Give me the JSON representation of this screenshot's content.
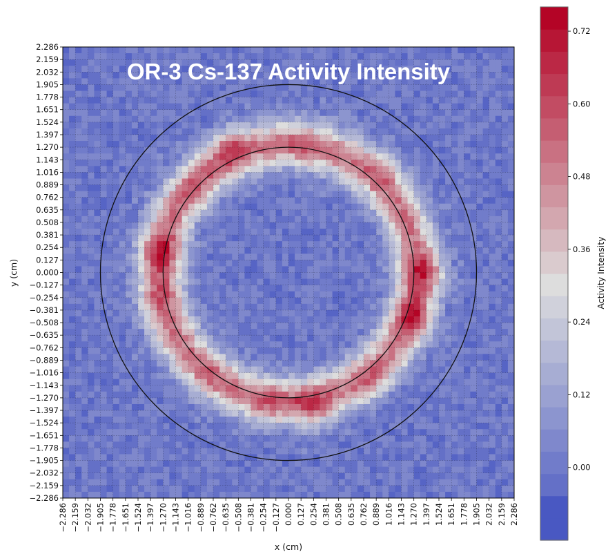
{
  "chart_data": {
    "type": "heatmap",
    "title": "OR-3 Cs-137 Activity Intensity",
    "xlabel": "x (cm)",
    "ylabel": "y (cm)",
    "colorbar_label": "Activity Intensity",
    "xlim": [
      -2.286,
      2.286
    ],
    "ylim": [
      -2.286,
      2.286
    ],
    "x_ticks": [
      "−2.286",
      "−2.159",
      "−2.032",
      "−1.905",
      "−1.778",
      "−1.651",
      "−1.524",
      "−1.397",
      "−1.270",
      "−1.143",
      "−1.016",
      "−0.889",
      "−0.762",
      "−0.635",
      "−0.508",
      "−0.381",
      "−0.254",
      "−0.127",
      "0.000",
      "0.127",
      "0.254",
      "0.381",
      "0.508",
      "0.635",
      "0.762",
      "0.889",
      "1.016",
      "1.143",
      "1.270",
      "1.397",
      "1.524",
      "1.651",
      "1.778",
      "1.905",
      "2.032",
      "2.159",
      "2.286"
    ],
    "y_ticks": [
      "2.286",
      "2.159",
      "2.032",
      "1.905",
      "1.778",
      "1.651",
      "1.524",
      "1.397",
      "1.270",
      "1.143",
      "1.016",
      "0.889",
      "0.762",
      "0.635",
      "0.508",
      "0.381",
      "0.254",
      "0.127",
      "0.000",
      "−0.127",
      "−0.254",
      "−0.381",
      "−0.508",
      "−0.635",
      "−0.762",
      "−0.889",
      "−1.016",
      "−1.143",
      "−1.270",
      "−1.397",
      "−1.524",
      "−1.651",
      "−1.778",
      "−1.905",
      "−2.032",
      "−2.159",
      "−2.286"
    ],
    "colorbar_ticks": [
      "0.00",
      "0.12",
      "0.24",
      "0.36",
      "0.48",
      "0.60",
      "0.72"
    ],
    "colorbar_range": [
      -0.12,
      0.76
    ],
    "grid": true,
    "circles_radius_cm": [
      1.905,
      1.27
    ],
    "background_level": 0.02,
    "ring": {
      "radius_cm": 1.3,
      "width_cm": 0.22,
      "base_level": 0.5
    },
    "hotspots": [
      {
        "x": -0.6,
        "y": 1.28,
        "value": 0.72
      },
      {
        "x": 0.15,
        "y": 1.28,
        "value": 0.6
      },
      {
        "x": 0.95,
        "y": 1.05,
        "value": 0.6
      },
      {
        "x": -1.3,
        "y": 0.2,
        "value": 0.76
      },
      {
        "x": -1.3,
        "y": -0.25,
        "value": 0.62
      },
      {
        "x": 1.4,
        "y": 0.0,
        "value": 0.76
      },
      {
        "x": 1.28,
        "y": -0.45,
        "value": 0.74
      },
      {
        "x": 0.25,
        "y": -1.38,
        "value": 0.72
      },
      {
        "x": -0.2,
        "y": -1.35,
        "value": 0.62
      },
      {
        "x": -0.8,
        "y": -1.0,
        "value": 0.58
      },
      {
        "x": 0.85,
        "y": -1.1,
        "value": 0.6
      },
      {
        "x": -0.95,
        "y": 0.85,
        "value": 0.6
      }
    ],
    "colors": {
      "low": "#3b4cc0",
      "mid": "#dddddd",
      "high": "#b40426",
      "circle": "#111111"
    }
  }
}
